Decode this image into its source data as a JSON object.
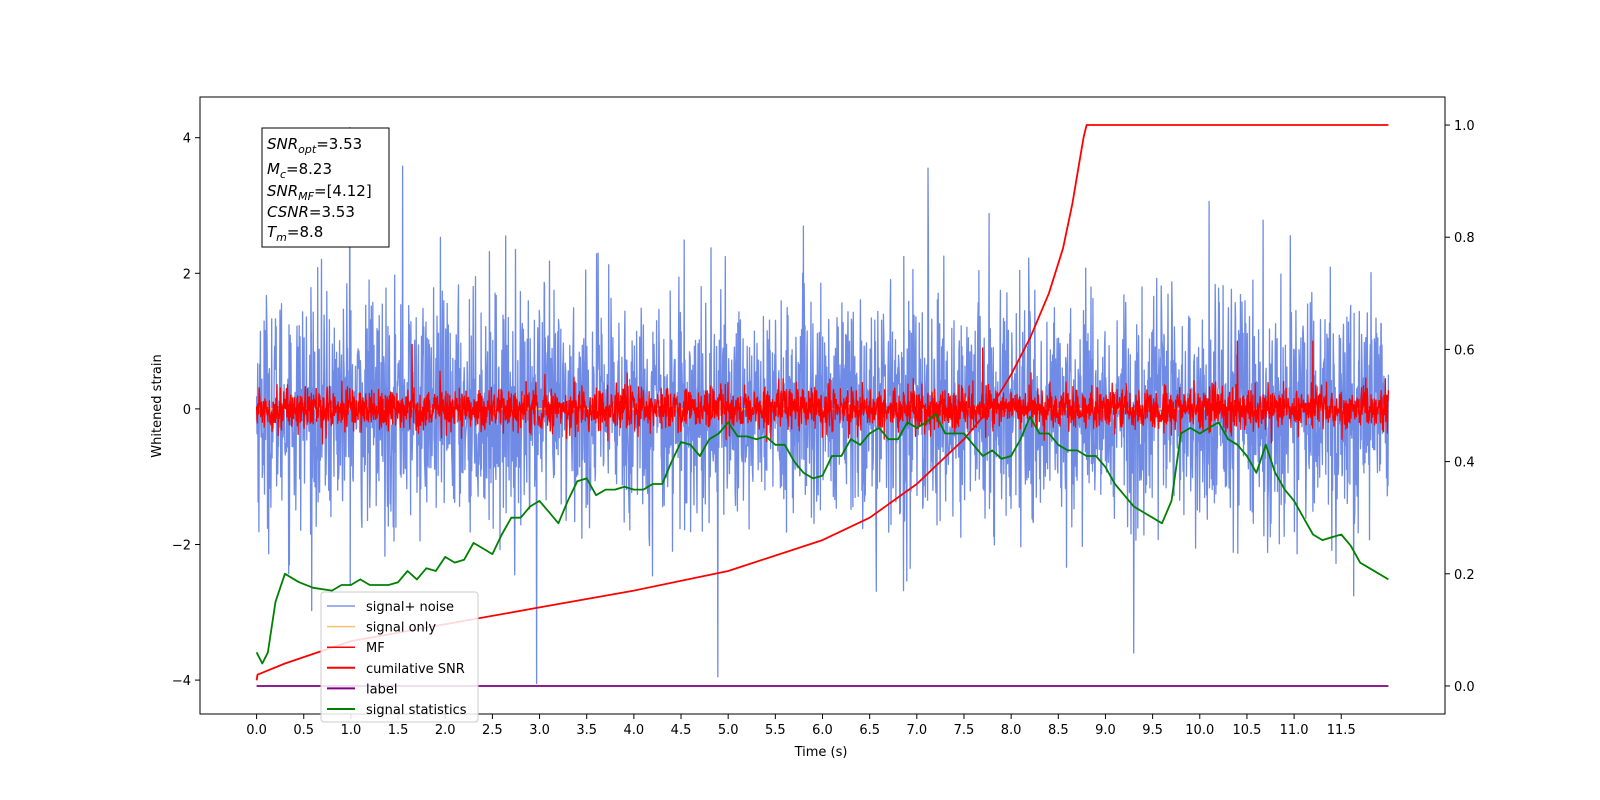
{
  "chart_data": {
    "type": "line",
    "xlabel": "Time (s)",
    "ylabel_left": "Whitened strain",
    "xlim": [
      -0.6,
      12.6
    ],
    "ylim_left": [
      -4.5,
      4.6
    ],
    "ylim_right": [
      -0.05,
      1.05
    ],
    "x_ticks": [
      "0.0",
      "0.5",
      "1.0",
      "1.5",
      "2.0",
      "2.5",
      "3.0",
      "3.5",
      "4.0",
      "4.5",
      "5.0",
      "5.5",
      "6.0",
      "6.5",
      "7.0",
      "7.5",
      "8.0",
      "8.5",
      "9.0",
      "9.5",
      "10.0",
      "10.5",
      "11.0",
      "11.5"
    ],
    "y_left_ticks": [
      "4",
      "2",
      "0",
      "−2",
      "−4"
    ],
    "y_right_ticks": [
      "1.0",
      "0.8",
      "0.6",
      "0.4",
      "0.2",
      "0.0"
    ],
    "grid": false,
    "legend_position": "lower-left",
    "annotation": {
      "snr_opt": "=3.53",
      "mc": "=8.23",
      "snr_mf": "=[4.12]",
      "csnr": "=3.53",
      "tm": "=8.8"
    },
    "series": [
      {
        "name": "signal+ noise",
        "axis": "left",
        "color": "#6f8be6",
        "kind": "noise",
        "x_range": [
          0.0,
          12.0
        ],
        "std": 0.85,
        "extremes": [
          [
            0.99,
            4.15
          ],
          [
            2.97,
            -4.05
          ],
          [
            4.89,
            -3.95
          ],
          [
            9.3,
            -3.6
          ],
          [
            1.55,
            3.58
          ],
          [
            7.12,
            3.55
          ]
        ]
      },
      {
        "name": "signal only",
        "axis": "left",
        "color": "#f5c46a",
        "kind": "flat",
        "x_range": [
          0.0,
          12.0
        ],
        "value": 0.0
      },
      {
        "name": "MF",
        "axis": "left",
        "color": "#ff0000",
        "kind": "noise",
        "x_range": [
          0.0,
          12.0
        ],
        "std": 0.16,
        "extremes": [
          [
            1.65,
            0.95
          ],
          [
            11.2,
            1.0
          ],
          [
            10.4,
            1.0
          ],
          [
            7.7,
            0.9
          ]
        ]
      },
      {
        "name": "cumilative SNR",
        "axis": "right",
        "color": "#ff0000",
        "kind": "line",
        "x": [
          0.0,
          0.01,
          0.3,
          1.0,
          2.0,
          3.0,
          4.0,
          5.0,
          6.0,
          6.5,
          7.0,
          7.5,
          7.8,
          8.0,
          8.2,
          8.4,
          8.55,
          8.65,
          8.72,
          8.77,
          8.8,
          9.0,
          10.0,
          11.0,
          12.0
        ],
        "y": [
          0.01,
          0.02,
          0.04,
          0.08,
          0.11,
          0.14,
          0.17,
          0.205,
          0.26,
          0.3,
          0.36,
          0.44,
          0.5,
          0.555,
          0.62,
          0.7,
          0.78,
          0.86,
          0.93,
          0.98,
          1.0,
          1.0,
          1.0,
          1.0,
          1.0
        ]
      },
      {
        "name": "label",
        "axis": "right",
        "color": "#800080",
        "kind": "line",
        "x": [
          0.0,
          12.0
        ],
        "y": [
          0.0,
          0.0
        ]
      },
      {
        "name": "signal statistics",
        "axis": "right",
        "color": "#008000",
        "kind": "line",
        "x": [
          0.0,
          0.06,
          0.12,
          0.2,
          0.3,
          0.45,
          0.6,
          0.8,
          0.9,
          1.0,
          1.1,
          1.2,
          1.4,
          1.5,
          1.6,
          1.7,
          1.8,
          1.9,
          2.0,
          2.1,
          2.2,
          2.3,
          2.4,
          2.5,
          2.6,
          2.7,
          2.8,
          2.9,
          3.0,
          3.1,
          3.2,
          3.3,
          3.4,
          3.5,
          3.6,
          3.7,
          3.8,
          3.9,
          4.0,
          4.1,
          4.2,
          4.3,
          4.4,
          4.5,
          4.6,
          4.7,
          4.8,
          4.9,
          5.0,
          5.1,
          5.2,
          5.3,
          5.4,
          5.5,
          5.6,
          5.7,
          5.8,
          5.9,
          6.0,
          6.1,
          6.2,
          6.3,
          6.4,
          6.5,
          6.6,
          6.7,
          6.8,
          6.9,
          7.0,
          7.1,
          7.2,
          7.3,
          7.4,
          7.5,
          7.6,
          7.7,
          7.8,
          7.9,
          8.0,
          8.1,
          8.2,
          8.3,
          8.4,
          8.5,
          8.6,
          8.7,
          8.8,
          8.9,
          9.0,
          9.1,
          9.2,
          9.3,
          9.4,
          9.5,
          9.6,
          9.7,
          9.8,
          9.9,
          10.0,
          10.1,
          10.2,
          10.3,
          10.4,
          10.5,
          10.6,
          10.7,
          10.8,
          10.9,
          11.0,
          11.1,
          11.2,
          11.3,
          11.4,
          11.5,
          11.6,
          11.7,
          11.8,
          11.9,
          12.0
        ],
        "y": [
          0.06,
          0.04,
          0.06,
          0.15,
          0.2,
          0.185,
          0.175,
          0.17,
          0.18,
          0.18,
          0.19,
          0.18,
          0.18,
          0.185,
          0.205,
          0.19,
          0.21,
          0.205,
          0.23,
          0.22,
          0.225,
          0.255,
          0.245,
          0.235,
          0.27,
          0.3,
          0.3,
          0.32,
          0.33,
          0.31,
          0.29,
          0.33,
          0.365,
          0.37,
          0.34,
          0.35,
          0.35,
          0.355,
          0.35,
          0.35,
          0.36,
          0.36,
          0.4,
          0.435,
          0.43,
          0.41,
          0.44,
          0.45,
          0.47,
          0.445,
          0.445,
          0.44,
          0.445,
          0.43,
          0.43,
          0.4,
          0.38,
          0.37,
          0.375,
          0.41,
          0.41,
          0.44,
          0.43,
          0.45,
          0.46,
          0.44,
          0.44,
          0.47,
          0.46,
          0.47,
          0.485,
          0.45,
          0.45,
          0.45,
          0.43,
          0.41,
          0.42,
          0.405,
          0.41,
          0.44,
          0.48,
          0.45,
          0.45,
          0.43,
          0.42,
          0.42,
          0.41,
          0.41,
          0.39,
          0.36,
          0.34,
          0.32,
          0.31,
          0.3,
          0.29,
          0.33,
          0.45,
          0.46,
          0.45,
          0.46,
          0.47,
          0.44,
          0.43,
          0.41,
          0.38,
          0.43,
          0.38,
          0.35,
          0.33,
          0.3,
          0.27,
          0.26,
          0.265,
          0.27,
          0.25,
          0.22,
          0.21,
          0.2,
          0.19
        ]
      }
    ]
  }
}
